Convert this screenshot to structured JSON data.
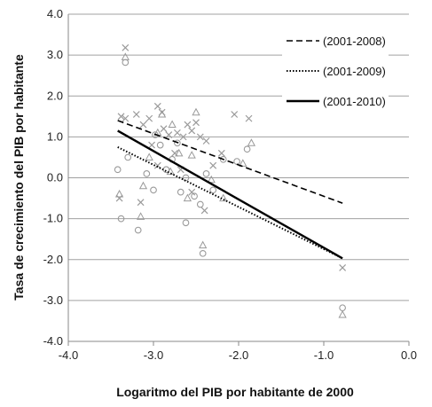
{
  "chart_data": {
    "type": "scatter",
    "xlabel": "Logaritmo del PIB por habitante de 2000",
    "ylabel": "Tasa de crecimiento del PIB por habitante",
    "xlim": [
      -4.0,
      0.0
    ],
    "ylim": [
      -4.0,
      4.0
    ],
    "x_ticks": [
      -4.0,
      -3.0,
      -2.0,
      -1.0,
      0.0
    ],
    "y_ticks": [
      -4.0,
      -3.0,
      -2.0,
      -1.0,
      0.0,
      1.0,
      2.0,
      3.0,
      4.0
    ],
    "x_tick_labels": [
      "-4.0",
      "-3.0",
      "-2.0",
      "-1.0",
      "0.0"
    ],
    "y_tick_labels": [
      "-4.0",
      "-3.0",
      "-2.0",
      "-1.0",
      "0.0",
      "1.0",
      "2.0",
      "3.0",
      "4.0"
    ],
    "grid": "horizontal",
    "legend_position": "top-right",
    "lines": [
      {
        "name": "(2001-2008)",
        "style": "dashed",
        "x": [
          -3.42,
          -0.78
        ],
        "y": [
          1.4,
          -0.62
        ]
      },
      {
        "name": "(2001-2009)",
        "style": "dotted",
        "x": [
          -3.42,
          -0.78
        ],
        "y": [
          0.75,
          -1.97
        ]
      },
      {
        "name": "(2001-2010)",
        "style": "solid",
        "x": [
          -3.42,
          -0.78
        ],
        "y": [
          1.15,
          -1.97
        ]
      }
    ],
    "scatter_series": [
      {
        "marker": "x",
        "points": [
          [
            -3.33,
            3.18
          ],
          [
            -3.38,
            1.5
          ],
          [
            -3.33,
            1.45
          ],
          [
            -3.2,
            1.55
          ],
          [
            -3.12,
            1.3
          ],
          [
            -3.05,
            1.45
          ],
          [
            -2.95,
            1.75
          ],
          [
            -2.9,
            1.6
          ],
          [
            -2.88,
            1.2
          ],
          [
            -2.82,
            1.05
          ],
          [
            -2.72,
            1.1
          ],
          [
            -2.65,
            1.0
          ],
          [
            -2.6,
            1.3
          ],
          [
            -2.55,
            1.15
          ],
          [
            -2.5,
            1.35
          ],
          [
            -2.45,
            1.0
          ],
          [
            -2.38,
            0.9
          ],
          [
            -2.3,
            0.3
          ],
          [
            -2.2,
            0.6
          ],
          [
            -2.05,
            1.55
          ],
          [
            -1.88,
            1.45
          ],
          [
            -3.4,
            -0.5
          ],
          [
            -3.15,
            -0.6
          ],
          [
            -2.95,
            0.3
          ],
          [
            -2.68,
            0.2
          ],
          [
            -2.55,
            -0.35
          ],
          [
            -2.4,
            -0.8
          ],
          [
            -0.78,
            -2.2
          ],
          [
            -3.02,
            0.8
          ],
          [
            -2.75,
            0.6
          ]
        ]
      },
      {
        "marker": "circle",
        "points": [
          [
            -3.33,
            2.82
          ],
          [
            -3.42,
            0.2
          ],
          [
            -3.38,
            -1.0
          ],
          [
            -3.18,
            -1.28
          ],
          [
            -3.08,
            0.1
          ],
          [
            -3.0,
            -0.3
          ],
          [
            -2.92,
            0.8
          ],
          [
            -2.85,
            0.2
          ],
          [
            -2.78,
            0.45
          ],
          [
            -2.68,
            -0.35
          ],
          [
            -2.62,
            0.0
          ],
          [
            -2.52,
            -0.45
          ],
          [
            -2.45,
            -0.65
          ],
          [
            -2.38,
            0.1
          ],
          [
            -2.3,
            -0.3
          ],
          [
            -2.18,
            0.45
          ],
          [
            -2.02,
            0.4
          ],
          [
            -1.9,
            0.7
          ],
          [
            -2.62,
            -1.1
          ],
          [
            -2.42,
            -1.85
          ],
          [
            -0.78,
            -3.18
          ],
          [
            -3.3,
            0.5
          ],
          [
            -2.98,
            1.05
          ],
          [
            -2.72,
            0.85
          ]
        ]
      },
      {
        "marker": "triangle",
        "points": [
          [
            -3.33,
            2.95
          ],
          [
            -3.4,
            -0.4
          ],
          [
            -3.12,
            -0.2
          ],
          [
            -3.05,
            0.5
          ],
          [
            -2.95,
            1.1
          ],
          [
            -2.9,
            1.55
          ],
          [
            -2.8,
            0.15
          ],
          [
            -2.7,
            0.6
          ],
          [
            -2.6,
            -0.5
          ],
          [
            -2.5,
            1.6
          ],
          [
            -2.42,
            -1.65
          ],
          [
            -2.32,
            -0.05
          ],
          [
            -2.18,
            -0.5
          ],
          [
            -1.95,
            0.35
          ],
          [
            -1.85,
            0.85
          ],
          [
            -0.78,
            -3.35
          ],
          [
            -3.15,
            -0.95
          ],
          [
            -2.78,
            1.3
          ],
          [
            -2.55,
            0.55
          ]
        ]
      }
    ]
  },
  "colors": {
    "line": "#000000",
    "marker": "#9a9a9a",
    "grid": "#a0a0a0",
    "axis": "#8a8a8a"
  }
}
